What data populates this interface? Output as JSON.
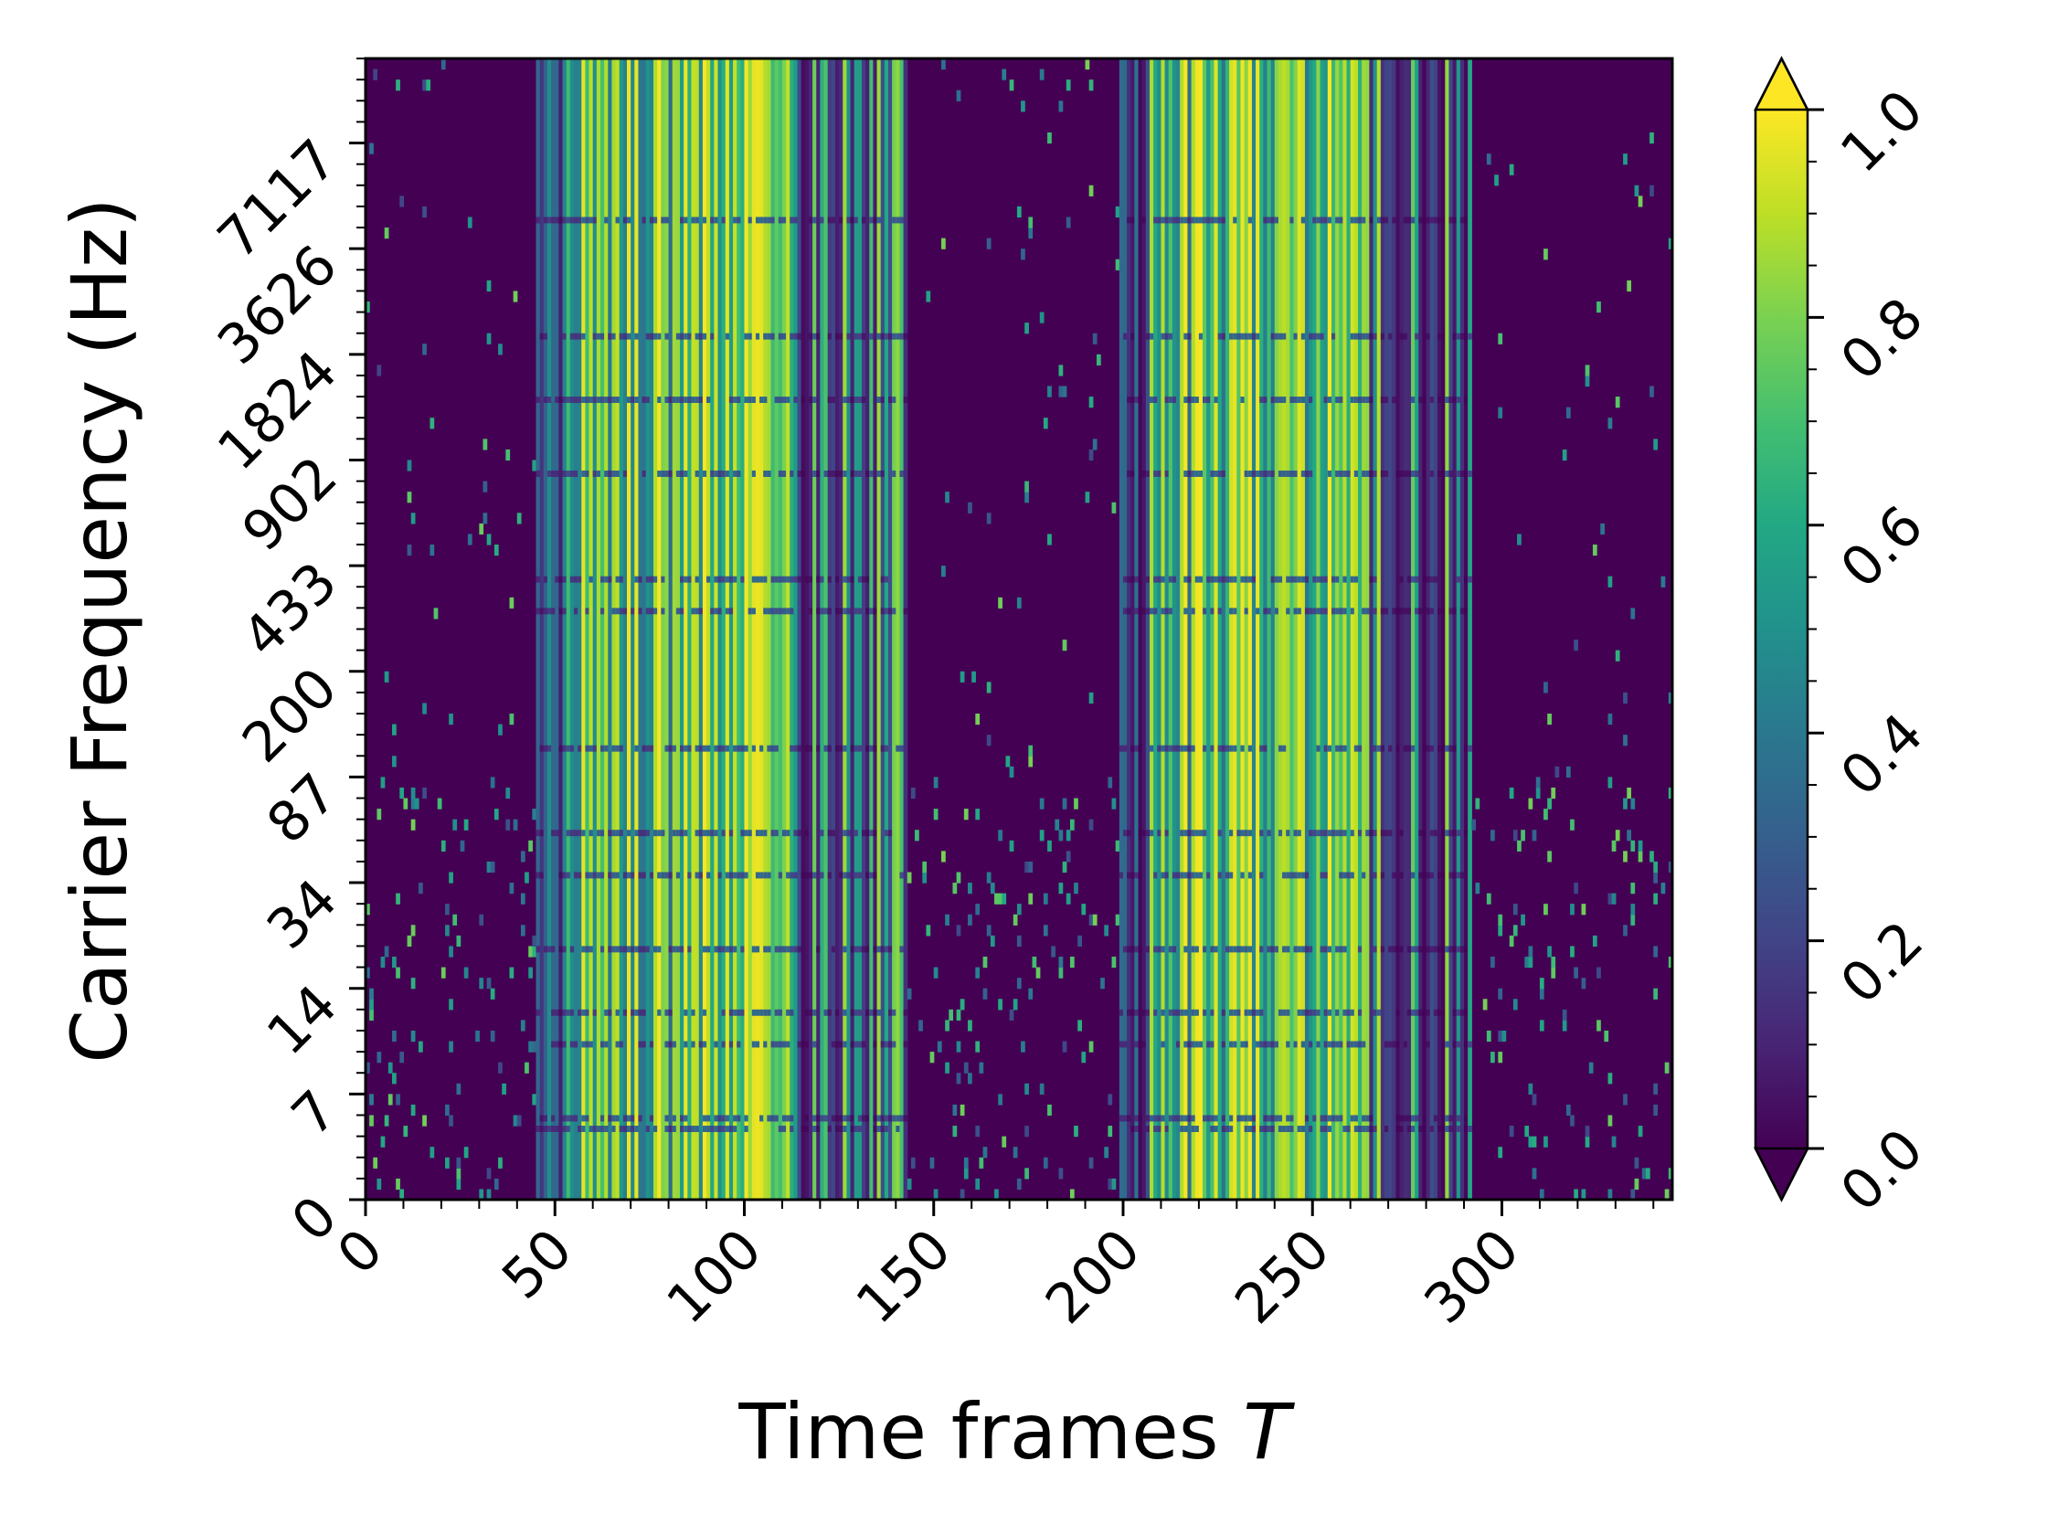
{
  "chart_data": {
    "type": "heatmap",
    "title": "",
    "xlabel": "Time frames",
    "xlabel_var": "T",
    "ylabel": "Carrier Frequency (Hz)",
    "xlim": [
      0,
      345
    ],
    "x_ticks": [
      0,
      50,
      100,
      150,
      200,
      250,
      300
    ],
    "x_tick_labels": [
      "0",
      "50",
      "100",
      "150",
      "200",
      "250",
      "300"
    ],
    "y_rows": 108,
    "y_tick_labels": [
      "0",
      "7",
      "14",
      "34",
      "87",
      "200",
      "433",
      "902",
      "1824",
      "3626",
      "7117"
    ],
    "y_tick_rows": [
      0,
      10,
      20,
      30,
      40,
      50,
      60,
      70,
      80,
      90,
      100
    ],
    "colorbar": {
      "colormap": "viridis",
      "range": [
        0.0,
        1.0
      ],
      "ticks": [
        0.0,
        0.2,
        0.4,
        0.6,
        0.8,
        1.0
      ],
      "tick_labels": [
        "0.0",
        "0.2",
        "0.4",
        "0.6",
        "0.8",
        "1.0"
      ],
      "extend": "both"
    },
    "active_segments": [
      [
        45,
        143
      ],
      [
        199,
        292
      ]
    ],
    "description_values": {
      "background": 0.0,
      "active_band_peak": 1.0
    },
    "grid": false
  },
  "colors": {
    "viridis_low": "#440154",
    "viridis_mid": "#21918c",
    "viridis_high": "#fde725",
    "axis": "#000000"
  }
}
